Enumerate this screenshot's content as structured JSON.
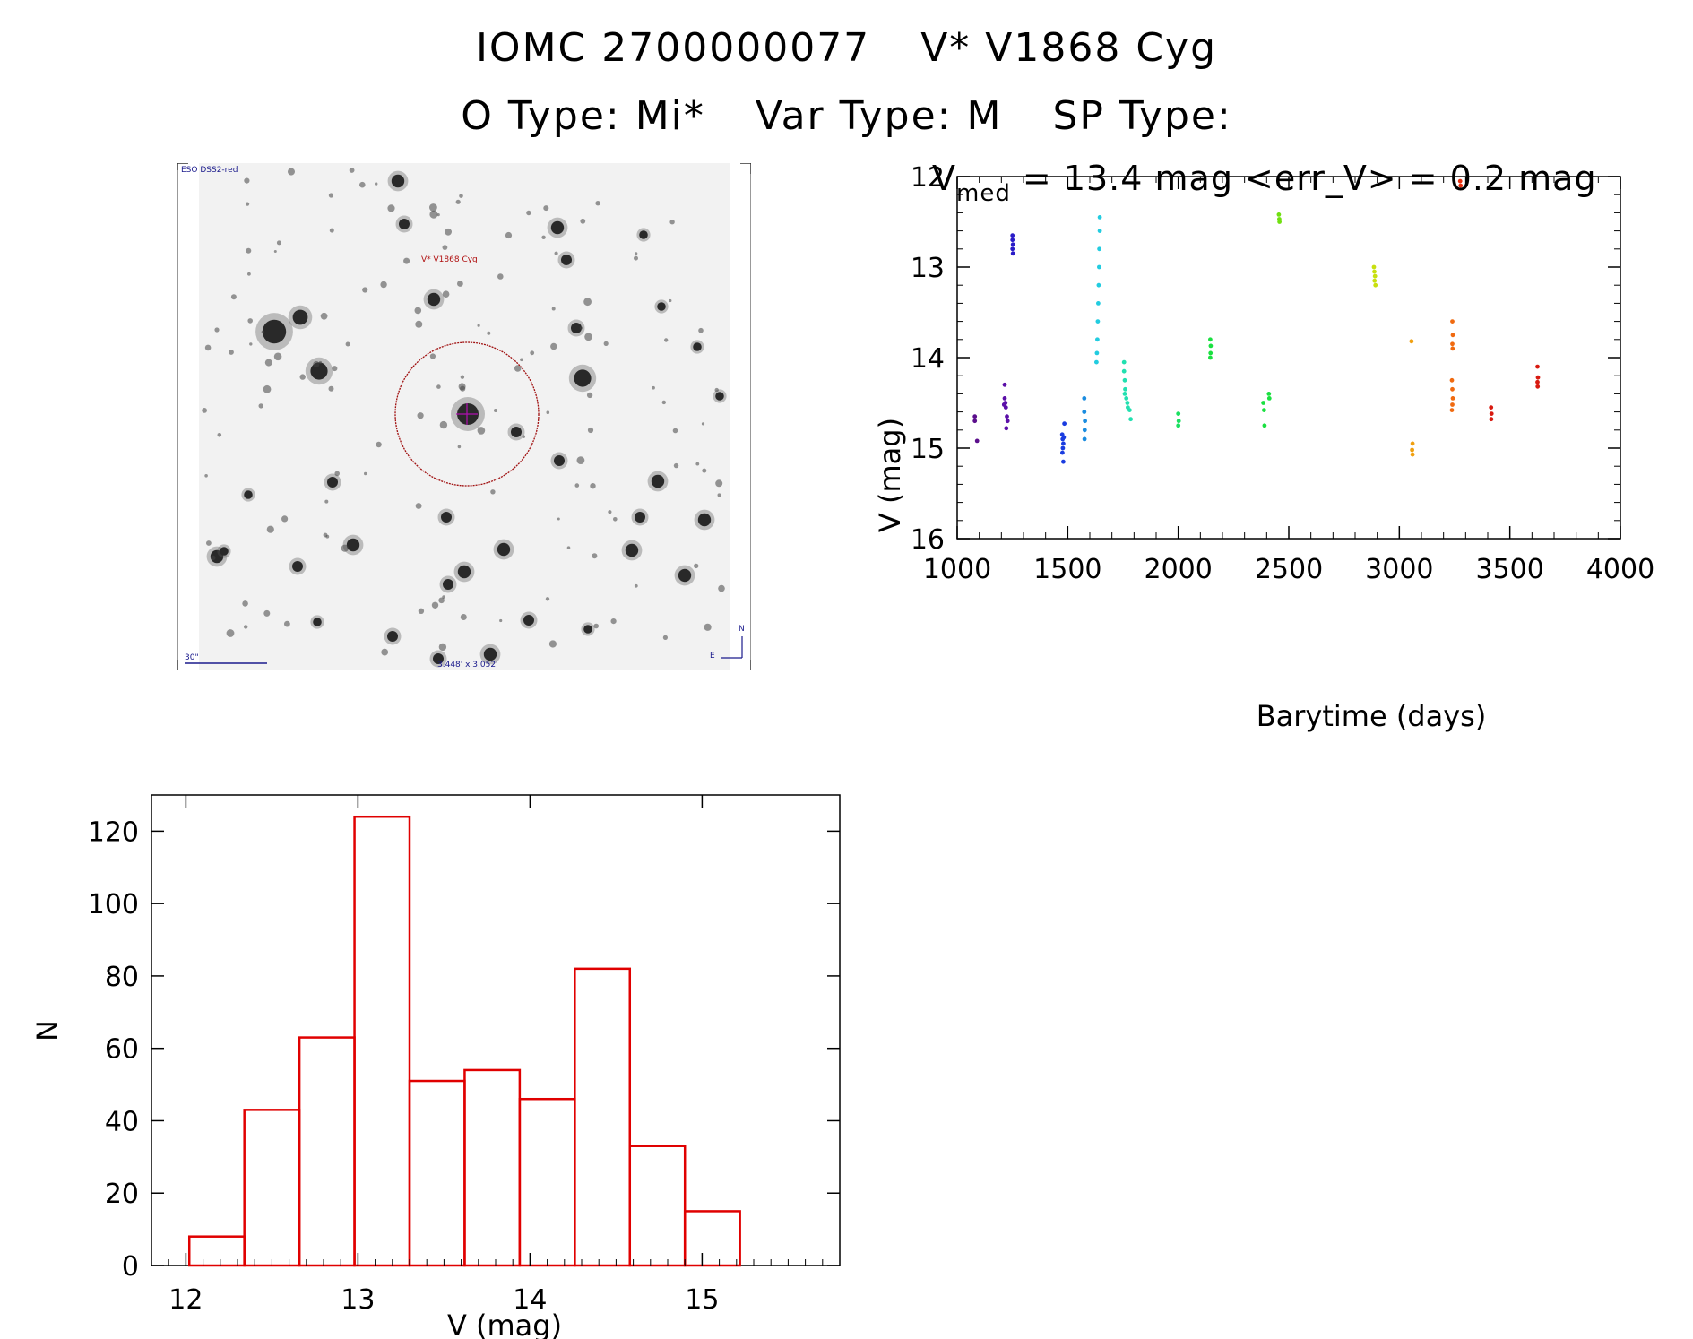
{
  "header": {
    "line1": [
      "IOMC 2700000077",
      "V* V1868 Cyg"
    ],
    "line2": [
      "O Type: Mi*",
      "Var Type: M",
      "SP Type:"
    ]
  },
  "finder": {
    "survey_label": "ESO DSS2-red",
    "target_label": "V* V1868 Cyg",
    "scale_label": "30\"",
    "fov_label": "3.448' x 3.052'",
    "north_label": "N",
    "east_label": "E"
  },
  "lightcurve": {
    "subtitle_main": "V",
    "subtitle_sub": "med",
    "subtitle_rest": " = 13.4 mag <err_V> = 0.2 mag"
  },
  "chart_data": [
    {
      "type": "scatter",
      "xlabel": "Barytime (days)",
      "ylabel": "V (mag)",
      "xlim": [
        1000,
        4000
      ],
      "ylim": [
        16,
        12
      ],
      "y_inverted": true,
      "x_ticks": [
        1000,
        1500,
        2000,
        2500,
        3000,
        3500,
        4000
      ],
      "y_ticks": [
        12,
        13,
        14,
        15,
        16
      ],
      "series": [
        {
          "color": "#5b0f8c",
          "points": [
            [
              1080,
              14.65
            ],
            [
              1080,
              14.7
            ],
            [
              1090,
              14.92
            ]
          ]
        },
        {
          "color": "#5b0fa8",
          "points": [
            [
              1215,
              14.3
            ],
            [
              1215,
              14.45
            ],
            [
              1218,
              14.5
            ],
            [
              1220,
              14.55
            ],
            [
              1225,
              14.65
            ],
            [
              1228,
              14.7
            ],
            [
              1222,
              14.78
            ],
            [
              1212,
              14.52
            ]
          ]
        },
        {
          "color": "#2a1cc8",
          "points": [
            [
              1250,
              12.65
            ],
            [
              1250,
              12.7
            ],
            [
              1252,
              12.75
            ],
            [
              1250,
              12.8
            ],
            [
              1252,
              12.85
            ]
          ]
        },
        {
          "color": "#1a3ce0",
          "points": [
            [
              1475,
              14.85
            ],
            [
              1477,
              14.9
            ],
            [
              1480,
              14.95
            ],
            [
              1478,
              15.0
            ],
            [
              1476,
              15.05
            ],
            [
              1480,
              15.15
            ],
            [
              1485,
              14.73
            ],
            [
              1482,
              14.88
            ]
          ]
        },
        {
          "color": "#1a8ce0",
          "points": [
            [
              1575,
              14.45
            ],
            [
              1575,
              14.6
            ],
            [
              1578,
              14.7
            ],
            [
              1577,
              14.8
            ],
            [
              1576,
              14.9
            ]
          ]
        },
        {
          "color": "#22cce0",
          "points": [
            [
              1645,
              12.45
            ],
            [
              1645,
              12.6
            ],
            [
              1643,
              12.8
            ],
            [
              1642,
              13.0
            ],
            [
              1640,
              13.2
            ],
            [
              1638,
              13.4
            ],
            [
              1636,
              13.6
            ],
            [
              1634,
              13.8
            ],
            [
              1632,
              13.95
            ],
            [
              1630,
              14.05
            ]
          ]
        },
        {
          "color": "#22e0b0",
          "points": [
            [
              1755,
              14.05
            ],
            [
              1755,
              14.15
            ],
            [
              1758,
              14.25
            ],
            [
              1760,
              14.35
            ],
            [
              1758,
              14.4
            ],
            [
              1765,
              14.45
            ],
            [
              1770,
              14.5
            ],
            [
              1772,
              14.55
            ],
            [
              1780,
              14.58
            ],
            [
              1785,
              14.68
            ]
          ]
        },
        {
          "color": "#1ae060",
          "points": [
            [
              2000,
              14.62
            ],
            [
              2002,
              14.7
            ],
            [
              2000,
              14.75
            ]
          ]
        },
        {
          "color": "#1ae040",
          "points": [
            [
              2145,
              13.8
            ],
            [
              2147,
              13.87
            ],
            [
              2146,
              13.95
            ],
            [
              2145,
              14.0
            ]
          ]
        },
        {
          "color": "#1ae040",
          "points": [
            [
              2385,
              14.5
            ],
            [
              2388,
              14.58
            ],
            [
              2390,
              14.75
            ],
            [
              2410,
              14.4
            ],
            [
              2412,
              14.45
            ]
          ]
        },
        {
          "color": "#70e010",
          "points": [
            [
              2455,
              12.42
            ],
            [
              2457,
              12.47
            ],
            [
              2458,
              12.5
            ]
          ]
        },
        {
          "color": "#c8e010",
          "points": [
            [
              2885,
              13.0
            ],
            [
              2887,
              13.05
            ],
            [
              2890,
              13.1
            ],
            [
              2888,
              13.15
            ],
            [
              2892,
              13.2
            ]
          ]
        },
        {
          "color": "#f0a010",
          "points": [
            [
              3055,
              13.82
            ],
            [
              3060,
              14.95
            ],
            [
              3058,
              15.02
            ],
            [
              3060,
              15.07
            ]
          ]
        },
        {
          "color": "#f06a10",
          "points": [
            [
              3240,
              13.6
            ],
            [
              3242,
              13.75
            ],
            [
              3240,
              13.85
            ],
            [
              3241,
              13.9
            ],
            [
              3238,
              14.25
            ],
            [
              3240,
              14.35
            ],
            [
              3242,
              14.45
            ],
            [
              3240,
              14.52
            ],
            [
              3238,
              14.58
            ]
          ]
        },
        {
          "color": "#e83010",
          "points": [
            [
              3275,
              12.05
            ],
            [
              3277,
              12.1
            ]
          ]
        },
        {
          "color": "#d81a10",
          "points": [
            [
              3415,
              14.55
            ],
            [
              3417,
              14.62
            ],
            [
              3416,
              14.68
            ]
          ]
        },
        {
          "color": "#d81a10",
          "points": [
            [
              3625,
              14.1
            ],
            [
              3627,
              14.22
            ],
            [
              3625,
              14.27
            ],
            [
              3626,
              14.32
            ]
          ]
        }
      ]
    },
    {
      "type": "bar",
      "xlabel": "V (mag)",
      "ylabel": "N",
      "xlim": [
        11.8,
        15.8
      ],
      "ylim": [
        0,
        130
      ],
      "x_ticks": [
        12,
        13,
        14,
        15
      ],
      "y_ticks": [
        0,
        20,
        40,
        60,
        80,
        100,
        120
      ],
      "bin_edges": [
        12.02,
        12.34,
        12.66,
        12.98,
        13.3,
        13.62,
        13.94,
        14.26,
        14.58,
        14.9,
        15.22
      ],
      "values": [
        8,
        43,
        63,
        124,
        51,
        54,
        46,
        82,
        33,
        15
      ],
      "color": "#e00000"
    }
  ]
}
